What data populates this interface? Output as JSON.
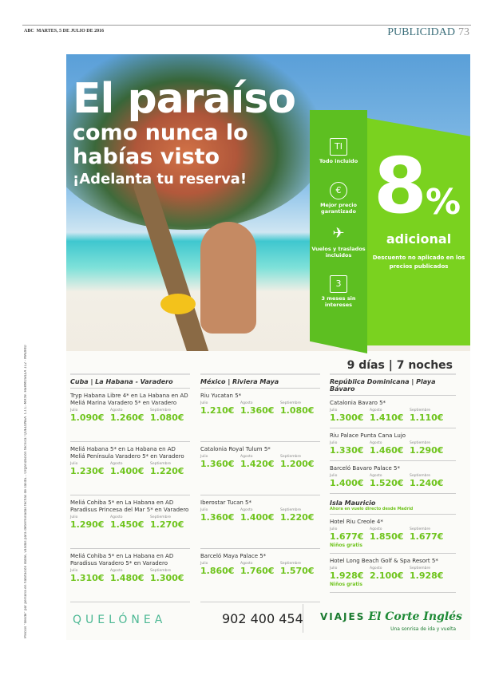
{
  "header": {
    "publication": "ABC",
    "date": "MARTES, 5 DE JULIO DE 2016",
    "section": "PUBLICIDAD",
    "page": "73"
  },
  "legal_text": "Precios \"desde\" por persona en habitación doble, válidos para determinadas fechas de salida... Organización técnica: QUELÓNEA. C.I.C.-MA59. HERMOSILLA 112 - MADRID",
  "hero": {
    "title": "El paraíso",
    "subtitle_line1": "como nunca lo",
    "subtitle_line2": "habías visto",
    "cta": "¡Adelanta tu reserva!"
  },
  "features": [
    {
      "icon": "all-inclusive-icon",
      "glyph": "TI",
      "label": "Todo incluido"
    },
    {
      "icon": "euro-icon",
      "glyph": "€",
      "label": "Mejor precio garantizado"
    },
    {
      "icon": "plane-icon",
      "glyph": "✈",
      "label": "Vuelos y traslados incluidos"
    },
    {
      "icon": "calendar-icon",
      "glyph": "3",
      "label": "3 meses sin intereses"
    }
  ],
  "promo": {
    "number": "8",
    "percent": "%",
    "label": "adicional",
    "note": "Descuento no aplicado en los precios publicados"
  },
  "duration": "9 días | 7 noches",
  "months": [
    "Julio",
    "Agosto",
    "Septiembre"
  ],
  "columns": [
    {
      "title": "Cuba | La Habana - Varadero",
      "hotels": [
        {
          "name": "Tryp Habana Libre 4* en La Habana en AD Meliá Marina Varadero 5* en Varadero",
          "prices": [
            "1.090€",
            "1.260€",
            "1.080€"
          ]
        },
        {
          "name": "Meliá Habana 5* en La Habana en AD Meliá Península Varadero 5* en Varadero",
          "prices": [
            "1.230€",
            "1.400€",
            "1.220€"
          ]
        },
        {
          "name": "Meliá Cohiba 5* en La Habana en AD Paradisus Princesa del Mar 5* en Varadero",
          "prices": [
            "1.290€",
            "1.450€",
            "1.270€"
          ]
        },
        {
          "name": "Meliá Cohiba 5* en La Habana en AD Paradisus Varadero 5* en Varadero",
          "prices": [
            "1.310€",
            "1.480€",
            "1.300€"
          ]
        }
      ]
    },
    {
      "title": "México | Riviera Maya",
      "hotels": [
        {
          "name": "Riu Yucatan 5*",
          "prices": [
            "1.210€",
            "1.360€",
            "1.080€"
          ]
        },
        {
          "name": "Catalonia Royal Tulum 5*",
          "prices": [
            "1.360€",
            "1.420€",
            "1.200€"
          ]
        },
        {
          "name": "Iberostar Tucan 5*",
          "prices": [
            "1.360€",
            "1.400€",
            "1.220€"
          ]
        },
        {
          "name": "Barceló Maya Palace 5*",
          "prices": [
            "1.860€",
            "1.760€",
            "1.570€"
          ]
        }
      ]
    },
    {
      "title": "República Dominicana | Playa Bávaro",
      "hotels": [
        {
          "name": "Catalonia Bavaro 5*",
          "prices": [
            "1.300€",
            "1.410€",
            "1.110€"
          ]
        },
        {
          "name": "Riu Palace Punta Cana Lujo",
          "prices": [
            "1.330€",
            "1.460€",
            "1.290€"
          ]
        },
        {
          "name": "Barceló Bavaro Palace 5*",
          "prices": [
            "1.400€",
            "1.520€",
            "1.240€"
          ]
        }
      ],
      "island": {
        "title": "Isla Mauricio",
        "subtitle": "Ahora en vuelo directo desde Madrid",
        "hotels": [
          {
            "name": "Hotel Riu Creole 4*",
            "prices": [
              "1.677€",
              "1.850€",
              "1.677€"
            ],
            "note": "Niños gratis"
          },
          {
            "name": "Hotel Long Beach Golf & Spa Resort 5*",
            "prices": [
              "1.928€",
              "2.100€",
              "1.928€"
            ],
            "note": "Niños gratis"
          }
        ]
      }
    }
  ],
  "footer": {
    "agency_logo": "QUELÓNEA",
    "phone": "902 400 454",
    "brand_prefix": "VIAJES",
    "brand_name": "El Corte Inglés",
    "slogan": "Una sonrisa de ida y vuelta"
  },
  "colors": {
    "green": "#7ad21f",
    "dark_green": "#5dbf21",
    "price_green": "#6fc41d",
    "section_blue": "#3b6e7a"
  }
}
